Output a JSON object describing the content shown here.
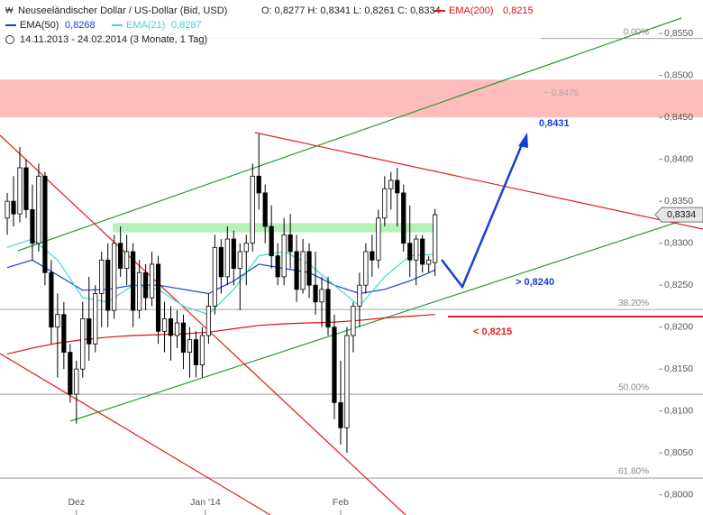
{
  "chart_data": {
    "type": "candlestick",
    "title": "Neuseeländischer Dollar / US-Dollar (Bid, USD)",
    "ohlc_text": "O: 0,8277  H: 0,8341  L: 0,8261  C: 0,8334",
    "period": "14.11.2013 - 24.02.2014 (3 Monate, 1 Tag)",
    "up_color": "#ffffff",
    "down_color": "#000000",
    "open": [
      0.833,
      0.835,
      0.8335,
      0.839,
      0.834,
      0.83,
      0.838,
      0.8265,
      0.82,
      0.8215,
      0.817,
      0.812,
      0.815,
      0.821,
      0.818,
      0.824,
      0.828,
      0.822,
      0.83,
      0.827,
      0.829,
      0.822,
      0.8265,
      0.8235,
      0.8275,
      0.8195,
      0.821,
      0.819,
      0.8205,
      0.817,
      0.8185,
      0.8155,
      0.819,
      0.8225,
      0.8295,
      0.826,
      0.8305,
      0.827,
      0.829,
      0.83,
      0.838,
      0.836,
      0.832,
      0.8285,
      0.826,
      0.831,
      0.829,
      0.8245,
      0.829,
      0.825,
      0.823,
      0.8245,
      0.82,
      0.811,
      0.808,
      0.819,
      0.8225,
      0.825,
      0.829,
      0.828,
      0.833,
      0.8365,
      0.8375,
      0.836,
      0.83,
      0.828,
      0.8305,
      0.8275,
      0.8277
    ],
    "high": [
      0.836,
      0.838,
      0.8415,
      0.84,
      0.837,
      0.8395,
      0.8385,
      0.828,
      0.824,
      0.823,
      0.818,
      0.816,
      0.823,
      0.826,
      0.825,
      0.829,
      0.83,
      0.831,
      0.832,
      0.831,
      0.83,
      0.828,
      0.8275,
      0.829,
      0.8285,
      0.823,
      0.8225,
      0.822,
      0.8215,
      0.82,
      0.8195,
      0.82,
      0.824,
      0.831,
      0.8305,
      0.832,
      0.8315,
      0.83,
      0.831,
      0.8395,
      0.843,
      0.837,
      0.8345,
      0.83,
      0.833,
      0.8335,
      0.831,
      0.8305,
      0.83,
      0.829,
      0.826,
      0.826,
      0.8215,
      0.816,
      0.82,
      0.823,
      0.8265,
      0.83,
      0.831,
      0.834,
      0.838,
      0.8385,
      0.839,
      0.837,
      0.8345,
      0.831,
      0.831,
      0.8285,
      0.8341
    ],
    "low": [
      0.831,
      0.832,
      0.8325,
      0.833,
      0.828,
      0.829,
      0.825,
      0.818,
      0.814,
      0.815,
      0.811,
      0.8085,
      0.814,
      0.816,
      0.817,
      0.82,
      0.82,
      0.821,
      0.826,
      0.825,
      0.82,
      0.821,
      0.822,
      0.8225,
      0.818,
      0.817,
      0.816,
      0.8175,
      0.815,
      0.814,
      0.814,
      0.814,
      0.818,
      0.8215,
      0.824,
      0.825,
      0.825,
      0.822,
      0.825,
      0.829,
      0.834,
      0.83,
      0.827,
      0.825,
      0.825,
      0.827,
      0.823,
      0.824,
      0.8235,
      0.8215,
      0.82,
      0.819,
      0.809,
      0.806,
      0.805,
      0.817,
      0.82,
      0.824,
      0.826,
      0.827,
      0.832,
      0.834,
      0.832,
      0.829,
      0.826,
      0.825,
      0.8265,
      0.8265,
      0.8261
    ],
    "close": [
      0.835,
      0.8335,
      0.839,
      0.834,
      0.83,
      0.838,
      0.8265,
      0.82,
      0.8215,
      0.817,
      0.812,
      0.815,
      0.821,
      0.818,
      0.824,
      0.828,
      0.822,
      0.83,
      0.827,
      0.829,
      0.822,
      0.8265,
      0.8235,
      0.8275,
      0.8195,
      0.821,
      0.819,
      0.8205,
      0.817,
      0.8185,
      0.8155,
      0.819,
      0.8225,
      0.8295,
      0.826,
      0.8305,
      0.827,
      0.829,
      0.83,
      0.838,
      0.836,
      0.832,
      0.8285,
      0.826,
      0.831,
      0.829,
      0.8245,
      0.829,
      0.825,
      0.823,
      0.8245,
      0.82,
      0.811,
      0.808,
      0.819,
      0.8225,
      0.825,
      0.829,
      0.828,
      0.833,
      0.8365,
      0.8375,
      0.836,
      0.83,
      0.828,
      0.8305,
      0.8275,
      0.828,
      0.8334
    ],
    "series": [
      {
        "name": "EMA(200)",
        "value_label": "0,8215",
        "color": "#dd1111",
        "x": [
          0,
          4,
          8,
          12,
          16,
          20,
          24,
          28,
          32,
          36,
          40,
          44,
          48,
          52,
          56,
          60,
          64,
          68
        ],
        "values": [
          0.8168,
          0.8175,
          0.8181,
          0.8185,
          0.8188,
          0.819,
          0.8191,
          0.8192,
          0.8194,
          0.8198,
          0.8202,
          0.8204,
          0.8205,
          0.8206,
          0.8208,
          0.8211,
          0.8213,
          0.8215
        ]
      },
      {
        "name": "EMA(50)",
        "value_label": "0,8268",
        "color": "#1a3fd6",
        "x": [
          0,
          4,
          8,
          12,
          16,
          20,
          24,
          28,
          32,
          36,
          40,
          44,
          48,
          52,
          56,
          60,
          64,
          68
        ],
        "values": [
          0.8271,
          0.828,
          0.8262,
          0.8244,
          0.8245,
          0.825,
          0.825,
          0.8245,
          0.824,
          0.8255,
          0.8275,
          0.827,
          0.8265,
          0.825,
          0.824,
          0.8245,
          0.8255,
          0.8268
        ]
      },
      {
        "name": "EMA(21)",
        "value_label": "0,8287",
        "color": "#40d8d0",
        "x": [
          0,
          4,
          8,
          12,
          16,
          20,
          24,
          28,
          32,
          36,
          40,
          44,
          48,
          52,
          56,
          60,
          64,
          68
        ],
        "values": [
          0.8295,
          0.8305,
          0.828,
          0.8235,
          0.823,
          0.825,
          0.8245,
          0.8225,
          0.8215,
          0.8245,
          0.8285,
          0.829,
          0.8275,
          0.825,
          0.8225,
          0.826,
          0.8285,
          0.8287
        ]
      }
    ],
    "last_label": "0,8334",
    "fib_levels": [
      {
        "value": 0.8544,
        "label": "0.00%"
      },
      {
        "value": 0.8221,
        "label": "38.20%"
      },
      {
        "value": 0.812,
        "label": "50.00%"
      },
      {
        "value": 0.802,
        "label": "61.80%"
      }
    ],
    "resistance_zone": {
      "from": 0.845,
      "to": 0.8495,
      "label": "~ 0,8475"
    },
    "support_zone": {
      "from": 0.8313,
      "to": 0.8324
    },
    "annotations": [
      "0,8431",
      "> 0,8240",
      "< 0,8215"
    ],
    "xlim": [
      -1.15,
      110.6
    ],
    "xticks": [
      {
        "value": 11,
        "label": "Dez"
      },
      {
        "value": 31.5,
        "label": "Jan '14"
      },
      {
        "value": 53,
        "label": "Feb"
      }
    ],
    "ylim": [
      0.7976,
      0.859
    ],
    "yticks": [
      {
        "value": 0.8,
        "label": "0,8000"
      },
      {
        "value": 0.805,
        "label": "0,8050"
      },
      {
        "value": 0.81,
        "label": "0,8100"
      },
      {
        "value": 0.815,
        "label": "0,8150"
      },
      {
        "value": 0.82,
        "label": "0,8200"
      },
      {
        "value": 0.825,
        "label": "0,8250"
      },
      {
        "value": 0.83,
        "label": "0,8300"
      },
      {
        "value": 0.835,
        "label": "0,8350"
      },
      {
        "value": 0.84,
        "label": "0,8400"
      },
      {
        "value": 0.845,
        "label": "0,8450"
      },
      {
        "value": 0.85,
        "label": "0,8500"
      },
      {
        "value": 0.855,
        "label": "0,8550"
      }
    ]
  }
}
